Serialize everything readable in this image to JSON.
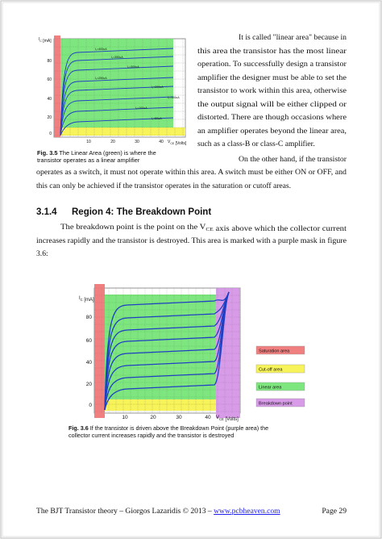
{
  "figure1": {
    "y_label": [
      "I",
      {
        "sub": "C"
      },
      " [mA]"
    ],
    "yticks": [
      "80",
      "60",
      "40",
      "20",
      "0"
    ],
    "xticks": [
      "10",
      "20",
      "30",
      "40"
    ],
    "x_label": [
      "V",
      {
        "sub": "CE"
      },
      " [Volts]"
    ],
    "curve_labels": [
      "I₁=400uA",
      "I₁=350uA",
      "I₁=300uA",
      "I₁=250uA",
      "I₁=200uA",
      "I₁=150uA",
      "I₁=100uA",
      "I₁=50uA"
    ],
    "caption": [
      [
        "Fig. 3.5",
        " The Linear Area (green) is where the"
      ],
      [
        "transistor operates as a linear amplifier"
      ]
    ]
  },
  "paragraph1": [
    [
      "It is called \"linear area\" because in"
    ],
    [
      "this area the transistor has the most linear"
    ],
    [
      "operation. To successfully design a transistor"
    ],
    [
      "amplifier the designer must be able to set the"
    ],
    [
      "transistor to work within this area, otherwise"
    ],
    [
      "the output signal will be either clipped or"
    ],
    [
      "distorted. There are though occasions where"
    ],
    [
      "an amplifier operates beyond the linear area,"
    ],
    [
      "such as a class-B or class-C amplifier."
    ]
  ],
  "paragraph2": [
    [
      "On the other hand, if the transistor"
    ],
    [
      "operates as a switch, it must not operate within this area. A switch must be either ON or OFF, and"
    ],
    [
      "this can only be achieved if the transistor operates in the saturation or cutoff areas."
    ]
  ],
  "heading": {
    "number": "3.1.4",
    "title": "Region 4: The Breakdown Point"
  },
  "paragraph3": [
    [
      "The breakdown point is the point on the V",
      {
        "sub": "CE"
      },
      " axis above which the collector current"
    ],
    [
      "increases rapidly and the transistor is destroyed. This area is marked with a purple mask in figure"
    ],
    [
      "3.6:"
    ]
  ],
  "figure2": {
    "y_label": [
      "I",
      {
        "sub": "C"
      },
      " [mA]"
    ],
    "yticks": [
      "80",
      "60",
      "40",
      "20",
      "0"
    ],
    "xticks": [
      "10",
      "20",
      "30",
      "40"
    ],
    "x_label": [
      "V",
      {
        "sub": "CE"
      },
      " [Volts]"
    ],
    "legend": [
      "Saturation area",
      "Cut-off area",
      "Linear area",
      "Breakdown point"
    ],
    "caption": [
      [
        "Fig. 3.6",
        " If the transistor is driven above the Breakdown Point (purple area) the"
      ],
      [
        "collector current increases rapidly and the transistor is destroyed"
      ]
    ]
  },
  "footer": {
    "left": "The BJT Transistor theory – Giorgos Lazaridis © 2013 – ",
    "link": "www.pcbheaven.com",
    "page": "Page 29"
  }
}
